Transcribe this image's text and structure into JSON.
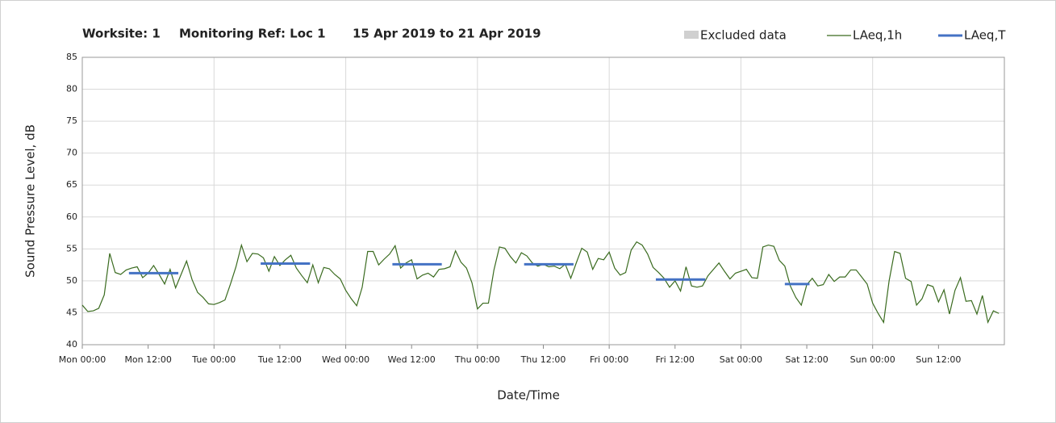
{
  "chart_data": {
    "type": "line",
    "title": [
      "Worksite: 1",
      "Monitoring Ref: Loc 1",
      "15 Apr 2019 to 21 Apr 2019"
    ],
    "xlabel": "Date/Time",
    "ylabel": "Sound Pressure Level, dB",
    "xlim": [
      0,
      168
    ],
    "ylim": [
      40,
      85
    ],
    "yticks": [
      40,
      45,
      50,
      55,
      60,
      65,
      70,
      75,
      80,
      85
    ],
    "xticks": [
      {
        "value": 0,
        "label": "Mon 00:00"
      },
      {
        "value": 12,
        "label": "Mon 12:00"
      },
      {
        "value": 24,
        "label": "Tue 00:00"
      },
      {
        "value": 36,
        "label": "Tue 12:00"
      },
      {
        "value": 48,
        "label": "Wed 00:00"
      },
      {
        "value": 60,
        "label": "Wed 12:00"
      },
      {
        "value": 72,
        "label": "Thu 00:00"
      },
      {
        "value": 84,
        "label": "Thu 12:00"
      },
      {
        "value": 96,
        "label": "Fri 00:00"
      },
      {
        "value": 108,
        "label": "Fri 12:00"
      },
      {
        "value": 120,
        "label": "Sat 00:00"
      },
      {
        "value": 132,
        "label": "Sat 12:00"
      },
      {
        "value": 144,
        "label": "Sun 00:00"
      },
      {
        "value": 156,
        "label": "Sun 12:00"
      }
    ],
    "grid": true,
    "excluded": {
      "name": "Excluded data",
      "color": "#d0d0d0"
    },
    "series": [
      {
        "name": "LAeq,1h",
        "color": "#3a6b1f",
        "x": [
          0,
          1,
          2,
          3,
          4,
          5,
          6,
          7,
          8,
          9,
          10,
          11,
          12,
          13,
          14,
          15,
          16,
          17,
          18,
          19,
          20,
          21,
          22,
          23,
          24,
          25,
          26,
          27,
          28,
          29,
          30,
          31,
          32,
          33,
          34,
          35,
          36,
          37,
          38,
          39,
          40,
          41,
          42,
          43,
          44,
          45,
          46,
          47,
          48,
          49,
          50,
          51,
          52,
          53,
          54,
          55,
          56,
          57,
          58,
          59,
          60,
          61,
          62,
          63,
          64,
          65,
          66,
          67,
          68,
          69,
          70,
          71,
          72,
          73,
          74,
          75,
          76,
          77,
          78,
          79,
          80,
          81,
          82,
          83,
          84,
          85,
          86,
          87,
          88,
          89,
          90,
          91,
          92,
          93,
          94,
          95,
          96,
          97,
          98,
          99,
          100,
          101,
          102,
          103,
          104,
          105,
          106,
          107,
          108,
          109,
          110,
          111,
          112,
          113,
          114,
          115,
          116,
          117,
          118,
          119,
          120,
          121,
          122,
          123,
          124,
          125,
          126,
          127,
          128,
          129,
          130,
          131,
          132,
          133,
          134,
          135,
          136,
          137,
          138,
          139,
          140,
          141,
          142,
          143,
          144,
          145,
          146,
          147,
          148,
          149,
          150,
          151,
          152,
          153,
          154,
          155,
          156,
          157,
          158,
          159,
          160,
          161,
          162,
          163,
          164,
          165,
          166,
          167
        ],
        "values": [
          46.2,
          45.2,
          45.3,
          45.7,
          47.8,
          54.3,
          51.3,
          51.0,
          51.7,
          52.0,
          52.2,
          50.5,
          51.2,
          52.4,
          51.0,
          49.5,
          51.8,
          48.9,
          51.0,
          53.1,
          50.2,
          48.2,
          47.4,
          46.4,
          46.3,
          46.6,
          47.0,
          49.5,
          52.2,
          55.6,
          53.0,
          54.3,
          54.2,
          53.6,
          51.5,
          53.8,
          52.4,
          53.3,
          54.0,
          52.0,
          50.8,
          49.7,
          52.5,
          49.7,
          52.1,
          51.9,
          51.0,
          50.3,
          48.5,
          47.2,
          46.1,
          49.0,
          54.6,
          54.6,
          52.5,
          53.4,
          54.2,
          55.5,
          52.0,
          52.8,
          53.3,
          50.3,
          50.9,
          51.2,
          50.6,
          51.8,
          51.9,
          52.2,
          54.7,
          52.9,
          52.0,
          49.7,
          45.6,
          46.5,
          46.5,
          51.7,
          55.3,
          55.1,
          53.8,
          52.8,
          54.4,
          53.9,
          52.8,
          52.3,
          52.6,
          52.2,
          52.3,
          51.9,
          52.6,
          50.4,
          52.8,
          55.1,
          54.5,
          51.8,
          53.5,
          53.3,
          54.5,
          52.0,
          50.9,
          51.3,
          54.8,
          56.1,
          55.6,
          54.2,
          52.1,
          51.3,
          50.4,
          49.0,
          50.0,
          48.4,
          52.2,
          49.2,
          49.0,
          49.2,
          50.8,
          51.8,
          52.8,
          51.5,
          50.3,
          51.2,
          51.5,
          51.8,
          50.5,
          50.4,
          55.3,
          55.6,
          55.4,
          53.2,
          52.3,
          49.2,
          47.4,
          46.2,
          49.4,
          50.4,
          49.2,
          49.4,
          51.0,
          49.9,
          50.6,
          50.6,
          51.7,
          51.7,
          50.6,
          49.5,
          46.5,
          44.9,
          43.5,
          50.0,
          54.6,
          54.3,
          50.4,
          49.9,
          46.2,
          47.2,
          49.4,
          49.1,
          46.7,
          48.6,
          44.8,
          48.5,
          50.5,
          46.8,
          46.9,
          44.8,
          47.7,
          43.5,
          45.3,
          44.9
        ]
      },
      {
        "name": "LAeq,T",
        "color": "#4472c4",
        "segments": [
          {
            "x": [
              8.5,
              17.5
            ],
            "value": 51.2
          },
          {
            "x": [
              32.5,
              41.5
            ],
            "value": 52.7
          },
          {
            "x": [
              56.5,
              65.5
            ],
            "value": 52.6
          },
          {
            "x": [
              80.5,
              89.5
            ],
            "value": 52.6
          },
          {
            "x": [
              104.5,
              113.5
            ],
            "value": 50.2
          },
          {
            "x": [
              128,
              132.5
            ],
            "value": 49.5
          }
        ]
      }
    ]
  }
}
